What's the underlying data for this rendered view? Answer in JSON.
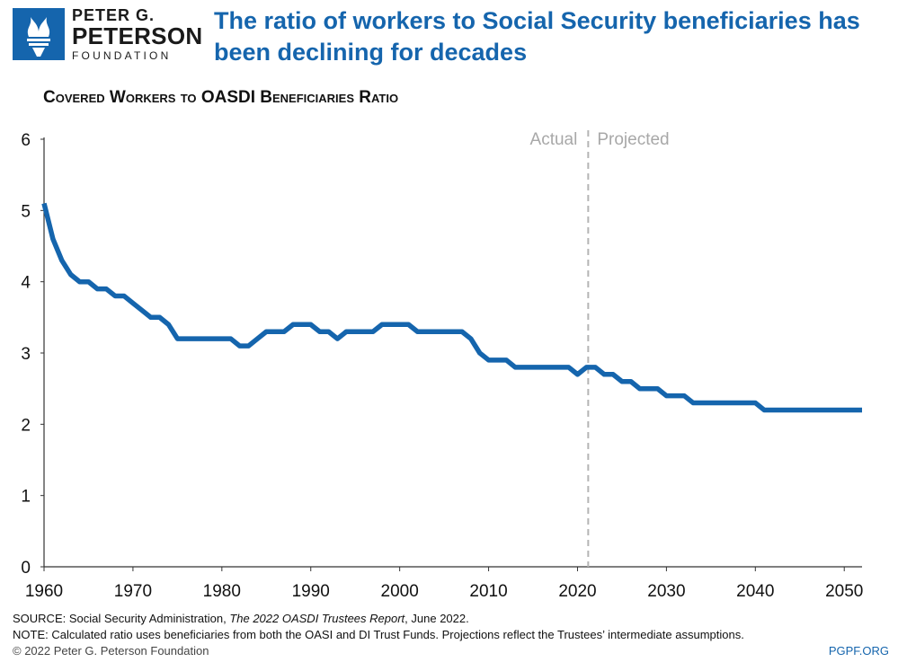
{
  "brand": {
    "line1": "PETER G.",
    "line2": "PETERSON",
    "line3": "FOUNDATION",
    "color": "#1565ad"
  },
  "headline": "The ratio of workers to Social Security beneficiaries has been declining for decades",
  "footer": {
    "source_prefix": "SOURCE: Social Security Administration, ",
    "source_title": "The 2022 OASDI Trustees Report",
    "source_suffix": ", June 2022.",
    "note": "NOTE: Calculated ratio uses beneficiaries from both the OASI and DI Trust Funds. Projections reflect the Trustees’ intermediate assumptions.",
    "copyright": "© 2022 Peter G. Peterson Foundation",
    "website": "PGPF.ORG"
  },
  "chart_data": {
    "type": "line",
    "title": "Covered Workers to OASDI Beneficiaries Ratio",
    "xlabel": "",
    "ylabel": "",
    "xlim": [
      1960,
      2052
    ],
    "ylim": [
      0,
      6
    ],
    "x_ticks": [
      "1960",
      "1970",
      "1980",
      "1990",
      "2000",
      "2010",
      "2020",
      "2030",
      "2040",
      "2050"
    ],
    "y_ticks": [
      "0",
      "1",
      "2",
      "3",
      "4",
      "5",
      "6"
    ],
    "grid": false,
    "line_color": "#1565ad",
    "divider": {
      "x": 2021.2,
      "left_label": "Actual",
      "right_label": "Projected"
    },
    "series": [
      {
        "x": [
          1960,
          1961,
          1962,
          1963,
          1964,
          1965,
          1966,
          1967,
          1968,
          1969,
          1970,
          1971,
          1972,
          1973,
          1974,
          1975,
          1976,
          1977,
          1978,
          1979,
          1980,
          1981,
          1982,
          1983,
          1984,
          1985,
          1986,
          1987,
          1988,
          1989,
          1990,
          1991,
          1992,
          1993,
          1994,
          1995,
          1996,
          1997,
          1998,
          1999,
          2000,
          2001,
          2002,
          2003,
          2004,
          2005,
          2006,
          2007,
          2008,
          2009,
          2010,
          2011,
          2012,
          2013,
          2014,
          2015,
          2016,
          2017,
          2018,
          2019,
          2020,
          2021,
          2022,
          2023,
          2024,
          2025,
          2026,
          2027,
          2028,
          2029,
          2030,
          2031,
          2032,
          2033,
          2034,
          2035,
          2036,
          2037,
          2038,
          2039,
          2040,
          2041,
          2042,
          2043,
          2044,
          2045,
          2046,
          2047,
          2048,
          2049,
          2050,
          2051,
          2052
        ],
        "values": [
          5.1,
          4.6,
          4.3,
          4.1,
          4.0,
          4.0,
          3.9,
          3.9,
          3.8,
          3.8,
          3.7,
          3.6,
          3.5,
          3.5,
          3.4,
          3.2,
          3.2,
          3.2,
          3.2,
          3.2,
          3.2,
          3.2,
          3.1,
          3.1,
          3.2,
          3.3,
          3.3,
          3.3,
          3.4,
          3.4,
          3.4,
          3.3,
          3.3,
          3.2,
          3.3,
          3.3,
          3.3,
          3.3,
          3.4,
          3.4,
          3.4,
          3.4,
          3.3,
          3.3,
          3.3,
          3.3,
          3.3,
          3.3,
          3.2,
          3.0,
          2.9,
          2.9,
          2.9,
          2.8,
          2.8,
          2.8,
          2.8,
          2.8,
          2.8,
          2.8,
          2.7,
          2.8,
          2.8,
          2.7,
          2.7,
          2.6,
          2.6,
          2.5,
          2.5,
          2.5,
          2.4,
          2.4,
          2.4,
          2.3,
          2.3,
          2.3,
          2.3,
          2.3,
          2.3,
          2.3,
          2.3,
          2.2,
          2.2,
          2.2,
          2.2,
          2.2,
          2.2,
          2.2,
          2.2,
          2.2,
          2.2,
          2.2,
          2.2
        ]
      }
    ]
  }
}
